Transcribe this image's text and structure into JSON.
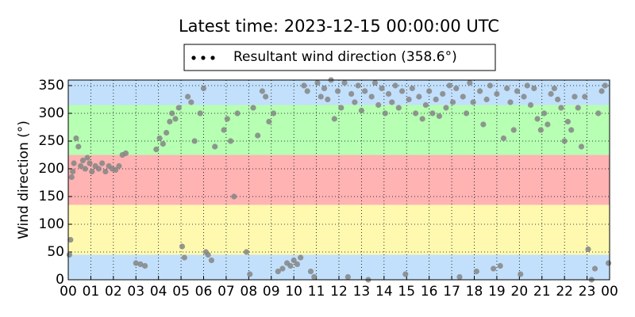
{
  "chart_data": {
    "type": "scatter",
    "title": "Latest time: 2023-12-15 00:00:00 UTC",
    "y_label": "Wind direction (°)",
    "xlim": [
      0,
      24
    ],
    "ylim": [
      0,
      360
    ],
    "xticks": [
      {
        "value": 0,
        "label": "00"
      },
      {
        "value": 1,
        "label": "01"
      },
      {
        "value": 2,
        "label": "02"
      },
      {
        "value": 3,
        "label": "03"
      },
      {
        "value": 4,
        "label": "04"
      },
      {
        "value": 5,
        "label": "05"
      },
      {
        "value": 6,
        "label": "06"
      },
      {
        "value": 7,
        "label": "07"
      },
      {
        "value": 8,
        "label": "08"
      },
      {
        "value": 9,
        "label": "09"
      },
      {
        "value": 10,
        "label": "10"
      },
      {
        "value": 11,
        "label": "11"
      },
      {
        "value": 12,
        "label": "12"
      },
      {
        "value": 13,
        "label": "13"
      },
      {
        "value": 14,
        "label": "14"
      },
      {
        "value": 15,
        "label": "15"
      },
      {
        "value": 16,
        "label": "16"
      },
      {
        "value": 17,
        "label": "17"
      },
      {
        "value": 18,
        "label": "18"
      },
      {
        "value": 19,
        "label": "19"
      },
      {
        "value": 20,
        "label": "20"
      },
      {
        "value": 21,
        "label": "21"
      },
      {
        "value": 22,
        "label": "22"
      },
      {
        "value": 23,
        "label": "23"
      },
      {
        "value": 24,
        "label": "00"
      }
    ],
    "yticks": [
      0,
      50,
      100,
      150,
      200,
      250,
      300,
      350
    ],
    "grid": true,
    "bands": [
      {
        "from": 0,
        "to": 45,
        "color": "#c2e0fb"
      },
      {
        "from": 45,
        "to": 135,
        "color": "#fff9b0"
      },
      {
        "from": 135,
        "to": 225,
        "color": "#ffb3b3"
      },
      {
        "from": 225,
        "to": 315,
        "color": "#b6ffb3"
      },
      {
        "from": 315,
        "to": 360,
        "color": "#c2e0fb"
      }
    ],
    "x": [
      0.05,
      0.1,
      0.15,
      0.2,
      0.25,
      0.35,
      0.45,
      0.55,
      0.65,
      0.75,
      0.85,
      0.95,
      1.05,
      1.2,
      1.35,
      1.5,
      1.65,
      1.8,
      1.95,
      2.1,
      2.25,
      2.4,
      2.55,
      3.0,
      3.2,
      3.4,
      3.9,
      4.05,
      4.2,
      4.35,
      4.5,
      4.6,
      4.75,
      4.9,
      5.05,
      5.15,
      5.3,
      5.45,
      5.6,
      5.85,
      6.0,
      6.1,
      6.2,
      6.35,
      6.5,
      6.9,
      7.05,
      7.2,
      7.35,
      7.5,
      7.9,
      8.05,
      8.2,
      8.4,
      8.6,
      8.75,
      8.9,
      9.1,
      9.3,
      9.5,
      9.7,
      9.85,
      10.0,
      10.15,
      10.3,
      10.45,
      10.6,
      10.75,
      10.9,
      11.05,
      11.2,
      11.35,
      11.5,
      11.65,
      11.8,
      11.95,
      12.1,
      12.25,
      12.4,
      12.55,
      12.7,
      12.85,
      13.0,
      13.15,
      13.3,
      13.45,
      13.6,
      13.75,
      13.9,
      14.05,
      14.2,
      14.35,
      14.5,
      14.65,
      14.8,
      14.95,
      15.1,
      15.25,
      15.4,
      15.55,
      15.7,
      15.85,
      16.0,
      16.15,
      16.3,
      16.45,
      16.6,
      16.75,
      16.9,
      17.05,
      17.2,
      17.35,
      17.5,
      17.65,
      17.8,
      17.95,
      18.1,
      18.25,
      18.4,
      18.55,
      18.7,
      18.85,
      19.0,
      19.15,
      19.3,
      19.45,
      19.6,
      19.75,
      19.9,
      20.05,
      20.2,
      20.35,
      20.5,
      20.65,
      20.8,
      20.95,
      21.1,
      21.25,
      21.4,
      21.55,
      21.7,
      21.85,
      22.0,
      22.15,
      22.3,
      22.45,
      22.6,
      22.75,
      22.9,
      23.05,
      23.2,
      23.35,
      23.5,
      23.65,
      23.8,
      23.95
    ],
    "series": [
      {
        "name": "Resultant wind direction (358.6°)",
        "color": "#858585",
        "values": [
          45,
          72,
          185,
          195,
          210,
          255,
          240,
          205,
          215,
          200,
          220,
          210,
          195,
          205,
          200,
          210,
          195,
          205,
          200,
          198,
          205,
          225,
          228,
          30,
          28,
          25,
          235,
          255,
          245,
          265,
          285,
          300,
          290,
          310,
          60,
          40,
          330,
          320,
          250,
          300,
          345,
          50,
          45,
          35,
          240,
          270,
          290,
          250,
          150,
          300,
          50,
          10,
          310,
          260,
          340,
          330,
          285,
          300,
          15,
          20,
          30,
          25,
          35,
          28,
          40,
          350,
          340,
          15,
          5,
          355,
          330,
          345,
          325,
          360,
          290,
          340,
          310,
          355,
          5,
          335,
          320,
          350,
          305,
          340,
          0,
          330,
          355,
          315,
          345,
          300,
          335,
          320,
          350,
          310,
          340,
          10,
          325,
          345,
          300,
          330,
          290,
          315,
          340,
          300,
          325,
          295,
          335,
          310,
          350,
          320,
          345,
          5,
          330,
          300,
          355,
          320,
          15,
          340,
          280,
          325,
          350,
          20,
          335,
          25,
          255,
          345,
          320,
          270,
          340,
          10,
          330,
          350,
          315,
          345,
          290,
          270,
          300,
          280,
          335,
          345,
          325,
          310,
          250,
          285,
          270,
          330,
          310,
          240,
          330,
          55,
          0,
          20,
          300,
          340,
          350,
          30
        ]
      }
    ]
  }
}
